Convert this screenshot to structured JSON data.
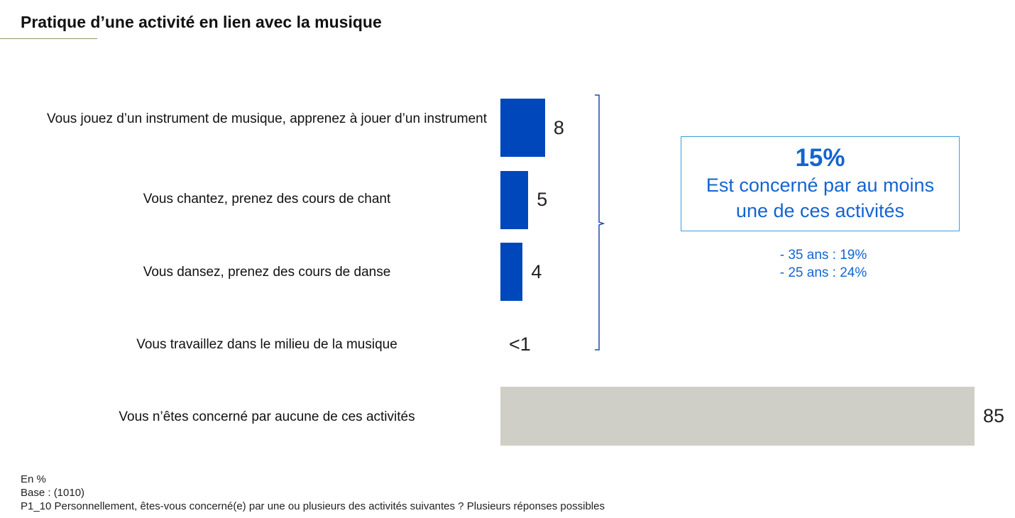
{
  "title": "Pratique d’une activité en lien avec la musique",
  "chart_data": {
    "type": "bar",
    "orientation": "horizontal",
    "unit": "%",
    "categories": [
      "Vous jouez d’un instrument de musique, apprenez à jouer d’un instrument",
      "Vous chantez, prenez des cours de chant",
      "Vous dansez, prenez des cours de danse",
      "Vous travaillez dans le milieu de la musique",
      "Vous n’êtes concerné par aucune de ces activités"
    ],
    "values": [
      8,
      5,
      4,
      0.5,
      85
    ],
    "value_labels": [
      "8",
      "5",
      "4",
      "<1",
      "85"
    ],
    "colors": [
      "#0047bb",
      "#0047bb",
      "#0047bb",
      "#0047bb",
      "#d0cfc7"
    ],
    "xlim": [
      0,
      85
    ]
  },
  "summary": {
    "percent": "15%",
    "text_line1": "Est concerné par au moins",
    "text_line2": "une de ces activités",
    "notes": [
      "- 35 ans : 19%",
      "- 25 ans : 24%"
    ]
  },
  "footnotes": {
    "unit": "En %",
    "base": "Base : (1010)",
    "question": "P1_10 Personnellement, êtes-vous concerné(e) par une ou plusieurs des activités suivantes ? Plusieurs réponses possibles"
  },
  "colors": {
    "bar_blue": "#0047bb",
    "bar_grey": "#d0cfc7",
    "accent_blue": "#1464d2",
    "box_border": "#3aa0d8"
  }
}
